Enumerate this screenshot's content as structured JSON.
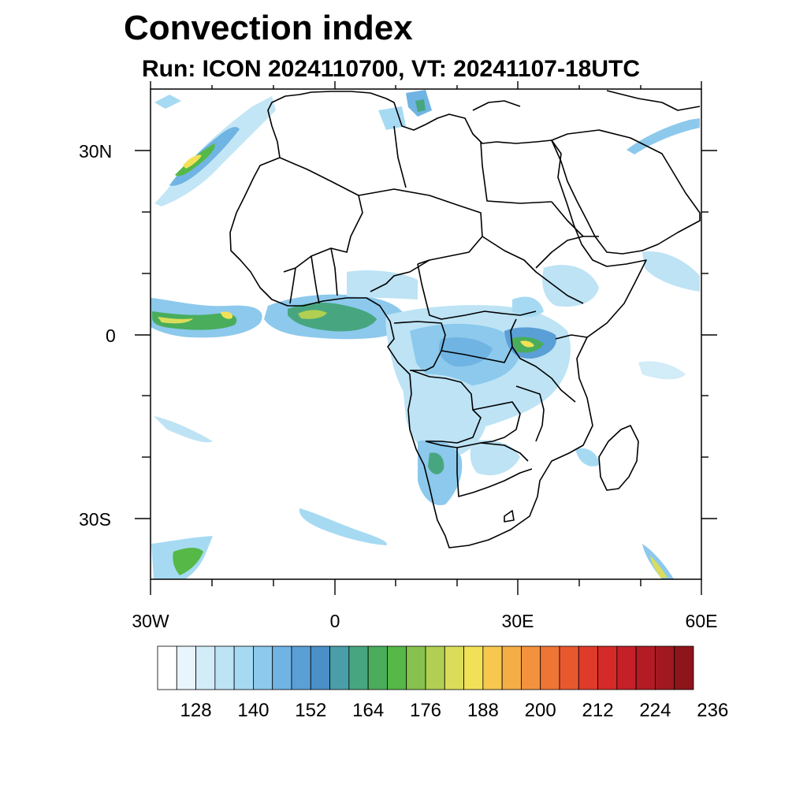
{
  "title": "Convection index",
  "subtitle": "Run: ICON 2024110700,  VT: 20241107-18UTC",
  "map": {
    "lat_labels": [
      "30N",
      "0",
      "30S"
    ],
    "lon_labels": [
      "30W",
      "0",
      "30E",
      "60E"
    ],
    "extent": {
      "lon_min": -30,
      "lon_max": 60,
      "lat_min": -40,
      "lat_max": 40
    }
  },
  "colorbar": {
    "labels": [
      "128",
      "140",
      "152",
      "164",
      "176",
      "188",
      "200",
      "212",
      "224",
      "236"
    ],
    "colors": [
      "#ffffff",
      "#e9f5fc",
      "#d2ecf8",
      "#bde3f5",
      "#a6daf3",
      "#8cc9ec",
      "#70b4e3",
      "#5a9fd6",
      "#4a8fc6",
      "#4a9ea8",
      "#47a680",
      "#49ad5b",
      "#55b847",
      "#86c24d",
      "#b1cf52",
      "#dbdd5a",
      "#f2e157",
      "#f7c84f",
      "#f5ad45",
      "#f3923e",
      "#ee7535",
      "#e8582f",
      "#df3b2b",
      "#d62a28",
      "#c52028",
      "#b31b25",
      "#a11820",
      "#8e1519"
    ]
  }
}
